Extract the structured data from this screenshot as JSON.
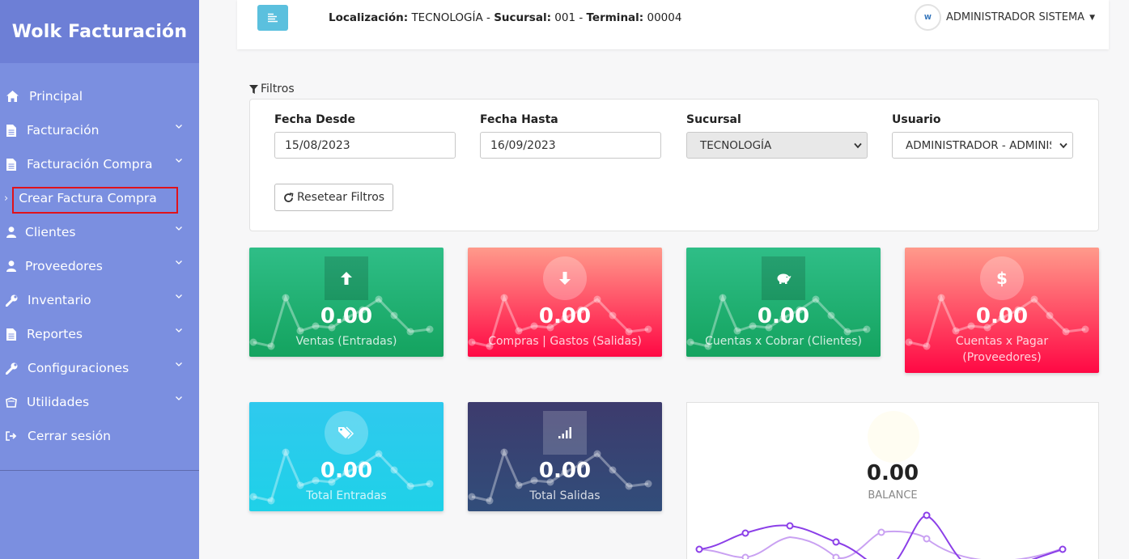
{
  "sidebar": {
    "brand": "Wolk Facturación",
    "items": [
      {
        "label": "Principal",
        "icon": "home-icon"
      },
      {
        "label": "Facturación",
        "icon": "document-icon"
      },
      {
        "label": "Facturación Compra",
        "icon": "document-icon"
      },
      {
        "label": "Crear Factura Compra",
        "icon": "chevron-right-icon"
      },
      {
        "label": "Clientes",
        "icon": "user-icon"
      },
      {
        "label": "Proveedores",
        "icon": "user-icon"
      },
      {
        "label": "Inventario",
        "icon": "wrench-icon"
      },
      {
        "label": "Reportes",
        "icon": "document-icon"
      },
      {
        "label": "Configuraciones",
        "icon": "wrench-icon"
      },
      {
        "label": "Utilidades",
        "icon": "box-icon"
      },
      {
        "label": "Cerrar sesión",
        "icon": "logout-icon"
      }
    ]
  },
  "header": {
    "loc_label": "Localización:",
    "loc_value": "TECNOLOGÍA",
    "sep": "-",
    "suc_label": "Sucursal:",
    "suc_value": "001",
    "term_label": "Terminal:",
    "term_value": "00004",
    "user_name": "ADMINISTRADOR SISTEMA",
    "avatar_text": "W"
  },
  "filters": {
    "title": "Filtros",
    "fecha_desde_label": "Fecha Desde",
    "fecha_desde_value": "15/08/2023",
    "fecha_hasta_label": "Fecha Hasta",
    "fecha_hasta_value": "16/09/2023",
    "sucursal_label": "Sucursal",
    "sucursal_value": "TECNOLOGÍA",
    "usuario_label": "Usuario",
    "usuario_value": "ADMINISTRADOR - ADMINIS",
    "reset_label": "Resetear Filtros"
  },
  "cards": {
    "ventas": {
      "value": "0.00",
      "label": "Ventas (Entradas)"
    },
    "compras": {
      "value": "0.00",
      "label": "Compras | Gastos (Salidas)"
    },
    "cobrar": {
      "value": "0.00",
      "label": "Cuentas x Cobrar (Clientes)"
    },
    "pagar": {
      "value": "0.00",
      "label_1": "Cuentas x Pagar",
      "label_2": "(Proveedores)"
    },
    "total_entradas": {
      "value": "0.00",
      "label": "Total Entradas"
    },
    "total_salidas": {
      "value": "0.00",
      "label": "Total Salidas"
    },
    "balance": {
      "value": "0.00",
      "label": "BALANCE"
    }
  },
  "colors": {
    "sidebar": "#7b8fe0",
    "green": "#14a35f",
    "red": "#ff0844",
    "cyan": "#1fd1e8",
    "navy": "#314d7a",
    "accent_purple": "#8b3fe8"
  }
}
